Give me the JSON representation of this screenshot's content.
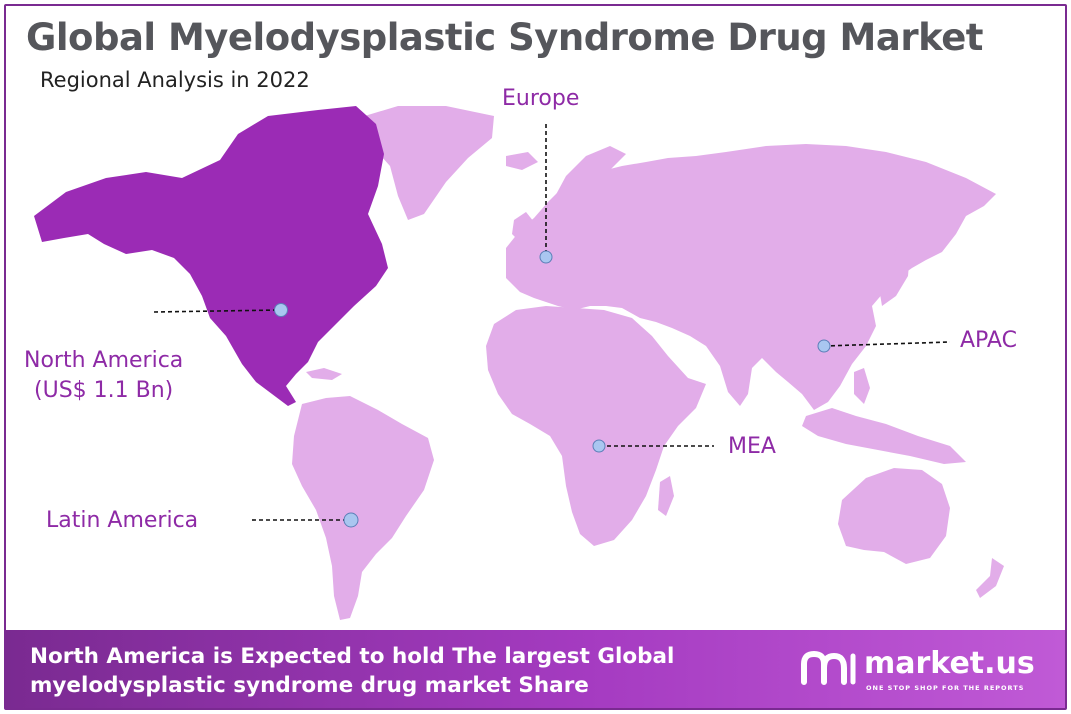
{
  "header": {
    "title": "Global Myelodysplastic Syndrome Drug Market",
    "subtitle": "Regional Analysis in 2022"
  },
  "regions": {
    "north_america": {
      "name": "North America",
      "value": "(US$ 1.1 Bn)"
    },
    "europe": {
      "name": "Europe"
    },
    "apac": {
      "name": "APAC"
    },
    "mea": {
      "name": "MEA"
    },
    "latin_america": {
      "name": "Latin America"
    }
  },
  "colors": {
    "highlight_region": "#9b2bb5",
    "other_regions": "#e2ade9",
    "label_text": "#8e2aa6",
    "marker": "#a9c6f0",
    "footer_start": "#7a2a91",
    "footer_end": "#c05ad6"
  },
  "footer": {
    "line1": "North America is Expected to hold The largest Global",
    "line2": "myelodysplastic syndrome drug market Share"
  },
  "brand": {
    "name": "market.us",
    "tagline": "ONE STOP SHOP FOR THE REPORTS",
    "logo_icon": "market-us-logo"
  }
}
